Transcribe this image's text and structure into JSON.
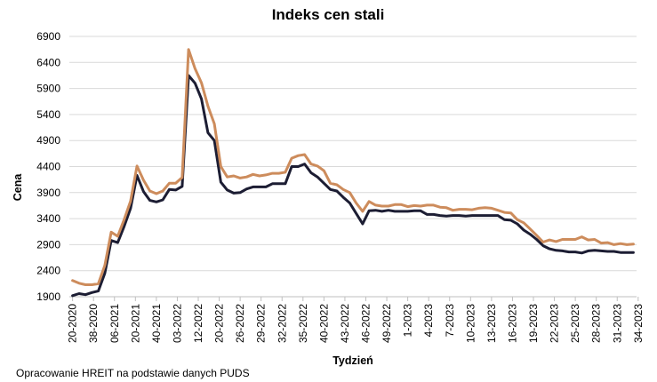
{
  "chart_data": {
    "type": "line",
    "title": "Indeks cen stali",
    "xlabel": "Tydzień",
    "ylabel": "Cena",
    "ylim": [
      1900,
      6900
    ],
    "yticks": [
      1900,
      2400,
      2900,
      3400,
      3900,
      4400,
      4900,
      5400,
      5900,
      6400,
      6900
    ],
    "grid": true,
    "legend": "none",
    "x_tick_labels": [
      "20-2020",
      "38-2020",
      "06-2021",
      "20-2021",
      "40-2021",
      "03-2022",
      "12-2022",
      "20-2022",
      "26-2022",
      "29-2022",
      "32-2022",
      "35-2022",
      "40-2022",
      "43-2022",
      "46-2022",
      "49-2022",
      "1-2023",
      "4-2023",
      "7-2023",
      "10-2023",
      "13-2023",
      "16-2023",
      "19-2023",
      "22-2023",
      "25-2023",
      "28-2023",
      "31-2023",
      "34-2023"
    ],
    "series": [
      {
        "color": "#1c1d33",
        "values": [
          1920,
          1960,
          1940,
          1980,
          2010,
          2350,
          2980,
          2940,
          3250,
          3600,
          4230,
          3920,
          3750,
          3720,
          3760,
          3960,
          3950,
          4020,
          6150,
          6000,
          5700,
          5050,
          4900,
          4100,
          3950,
          3890,
          3900,
          3970,
          4010,
          4010,
          4010,
          4070,
          4070,
          4070,
          4400,
          4400,
          4450,
          4280,
          4200,
          4080,
          3960,
          3930,
          3810,
          3700,
          3500,
          3300,
          3550,
          3560,
          3540,
          3560,
          3540,
          3540,
          3540,
          3550,
          3550,
          3480,
          3480,
          3460,
          3450,
          3460,
          3460,
          3450,
          3460,
          3460,
          3460,
          3460,
          3460,
          3380,
          3370,
          3300,
          3180,
          3100,
          3000,
          2880,
          2820,
          2790,
          2780,
          2760,
          2760,
          2740,
          2780,
          2790,
          2780,
          2770,
          2770,
          2750,
          2750,
          2750
        ]
      },
      {
        "color": "#cd8c5c",
        "values": [
          2210,
          2160,
          2130,
          2130,
          2150,
          2500,
          3140,
          3060,
          3380,
          3740,
          4410,
          4140,
          3930,
          3880,
          3930,
          4080,
          4080,
          4190,
          6650,
          6280,
          6010,
          5560,
          5220,
          4400,
          4200,
          4220,
          4180,
          4200,
          4250,
          4220,
          4240,
          4270,
          4270,
          4290,
          4560,
          4610,
          4630,
          4450,
          4410,
          4320,
          4080,
          4050,
          3960,
          3900,
          3700,
          3540,
          3730,
          3660,
          3640,
          3640,
          3670,
          3670,
          3630,
          3650,
          3640,
          3660,
          3660,
          3620,
          3610,
          3560,
          3580,
          3580,
          3570,
          3600,
          3610,
          3600,
          3560,
          3520,
          3510,
          3380,
          3320,
          3200,
          3080,
          2950,
          2990,
          2960,
          3000,
          3000,
          3000,
          3050,
          2990,
          3000,
          2930,
          2940,
          2900,
          2920,
          2900,
          2910
        ]
      }
    ]
  },
  "footer": {
    "source": "Opracowanie HREIT na podstawie danych PUDS"
  }
}
